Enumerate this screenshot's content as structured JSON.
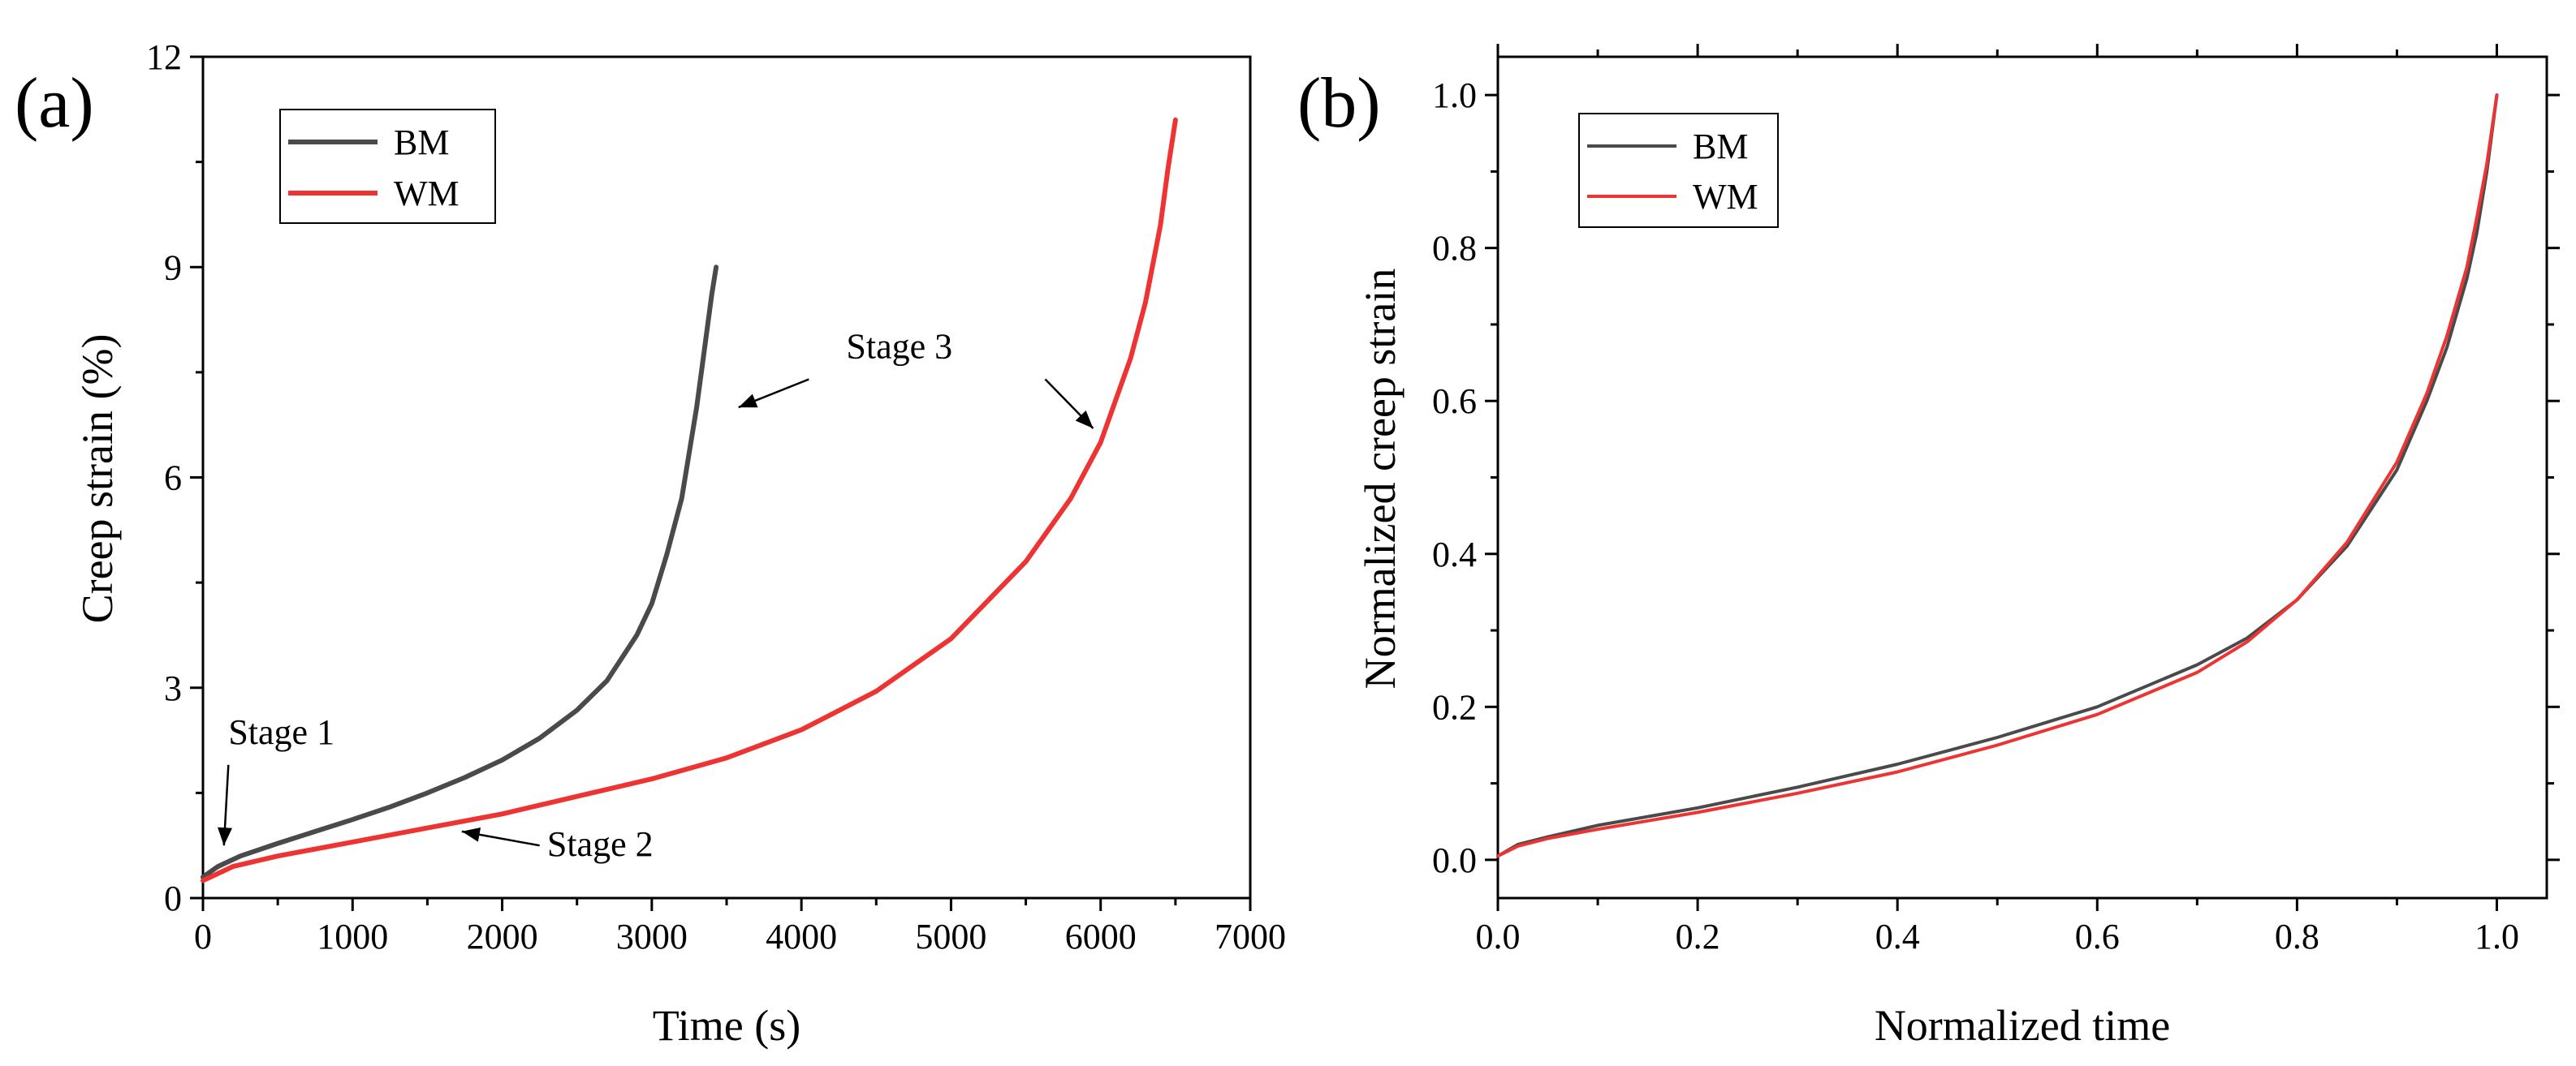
{
  "chart_data": [
    {
      "type": "line",
      "panel_label": "(a)",
      "xlabel": "Time (s)",
      "ylabel": "Creep strain (%)",
      "xlim": [
        0,
        7000
      ],
      "ylim": [
        0,
        12
      ],
      "xticks": [
        0,
        1000,
        2000,
        3000,
        4000,
        5000,
        6000,
        7000
      ],
      "yticks": [
        0,
        3,
        6,
        9,
        12
      ],
      "legend_position": "top-left",
      "series": [
        {
          "name": "BM",
          "color": "#4a4a4a",
          "x": [
            0,
            100,
            250,
            500,
            750,
            1000,
            1250,
            1500,
            1750,
            2000,
            2250,
            2500,
            2700,
            2900,
            3000,
            3100,
            3200,
            3300,
            3350,
            3400,
            3430
          ],
          "y": [
            0.3,
            0.45,
            0.6,
            0.78,
            0.95,
            1.12,
            1.3,
            1.5,
            1.72,
            1.97,
            2.28,
            2.68,
            3.1,
            3.75,
            4.2,
            4.9,
            5.7,
            7.0,
            7.8,
            8.6,
            9.0
          ]
        },
        {
          "name": "WM",
          "color": "#ee3333",
          "x": [
            0,
            200,
            500,
            1000,
            1500,
            2000,
            2500,
            3000,
            3500,
            4000,
            4500,
            5000,
            5500,
            5800,
            6000,
            6200,
            6300,
            6400,
            6450,
            6500
          ],
          "y": [
            0.25,
            0.45,
            0.6,
            0.8,
            1.0,
            1.2,
            1.45,
            1.7,
            2.0,
            2.4,
            2.95,
            3.7,
            4.8,
            5.7,
            6.5,
            7.7,
            8.5,
            9.6,
            10.4,
            11.1
          ]
        }
      ],
      "annotations": [
        {
          "text": "Stage 1",
          "text_x": 170,
          "text_y": 2.2,
          "arrow_from": [
            170,
            1.9
          ],
          "arrow_to": [
            140,
            0.75
          ]
        },
        {
          "text": "Stage 2",
          "text_x": 2300,
          "text_y": 0.6,
          "arrow_from": [
            2250,
            0.75
          ],
          "arrow_to": [
            1730,
            0.95
          ]
        },
        {
          "text": "Stage 3",
          "text_x": 4300,
          "text_y": 7.7,
          "arrow_from": [
            4050,
            7.4
          ],
          "arrow_to": [
            3580,
            7.0
          ]
        },
        {
          "text": "",
          "arrow_from": [
            5630,
            7.4
          ],
          "arrow_to": [
            5950,
            6.7
          ]
        }
      ]
    },
    {
      "type": "line",
      "panel_label": "(b)",
      "xlabel": "Normalized time",
      "ylabel": "Normalized creep strain",
      "xlim": [
        0,
        1.05
      ],
      "ylim": [
        -0.05,
        1.05
      ],
      "xticks": [
        0,
        0.2,
        0.4,
        0.6,
        0.8,
        1.0
      ],
      "xtick_labels": [
        "0.0",
        "0.2",
        "0.4",
        "0.6",
        "0.8",
        "1.0"
      ],
      "yticks": [
        0,
        0.2,
        0.4,
        0.6,
        0.8,
        1.0
      ],
      "ytick_labels": [
        "0.0",
        "0.2",
        "0.4",
        "0.6",
        "0.8",
        "1.0"
      ],
      "legend_position": "top-left",
      "series": [
        {
          "name": "BM",
          "color": "#4a4a4a",
          "x": [
            0,
            0.02,
            0.05,
            0.1,
            0.2,
            0.3,
            0.4,
            0.5,
            0.6,
            0.7,
            0.75,
            0.8,
            0.85,
            0.9,
            0.93,
            0.95,
            0.97,
            0.98,
            0.99,
            1.0
          ],
          "y": [
            0.005,
            0.02,
            0.03,
            0.045,
            0.068,
            0.095,
            0.125,
            0.16,
            0.2,
            0.255,
            0.29,
            0.34,
            0.41,
            0.51,
            0.6,
            0.67,
            0.76,
            0.82,
            0.9,
            1.0
          ]
        },
        {
          "name": "WM",
          "color": "#ee3333",
          "x": [
            0,
            0.02,
            0.05,
            0.1,
            0.2,
            0.3,
            0.4,
            0.5,
            0.6,
            0.7,
            0.75,
            0.8,
            0.85,
            0.9,
            0.93,
            0.95,
            0.97,
            0.98,
            0.99,
            1.0
          ],
          "y": [
            0.005,
            0.018,
            0.028,
            0.04,
            0.062,
            0.087,
            0.115,
            0.15,
            0.19,
            0.245,
            0.285,
            0.34,
            0.415,
            0.52,
            0.61,
            0.685,
            0.775,
            0.84,
            0.91,
            1.0
          ]
        }
      ]
    }
  ]
}
